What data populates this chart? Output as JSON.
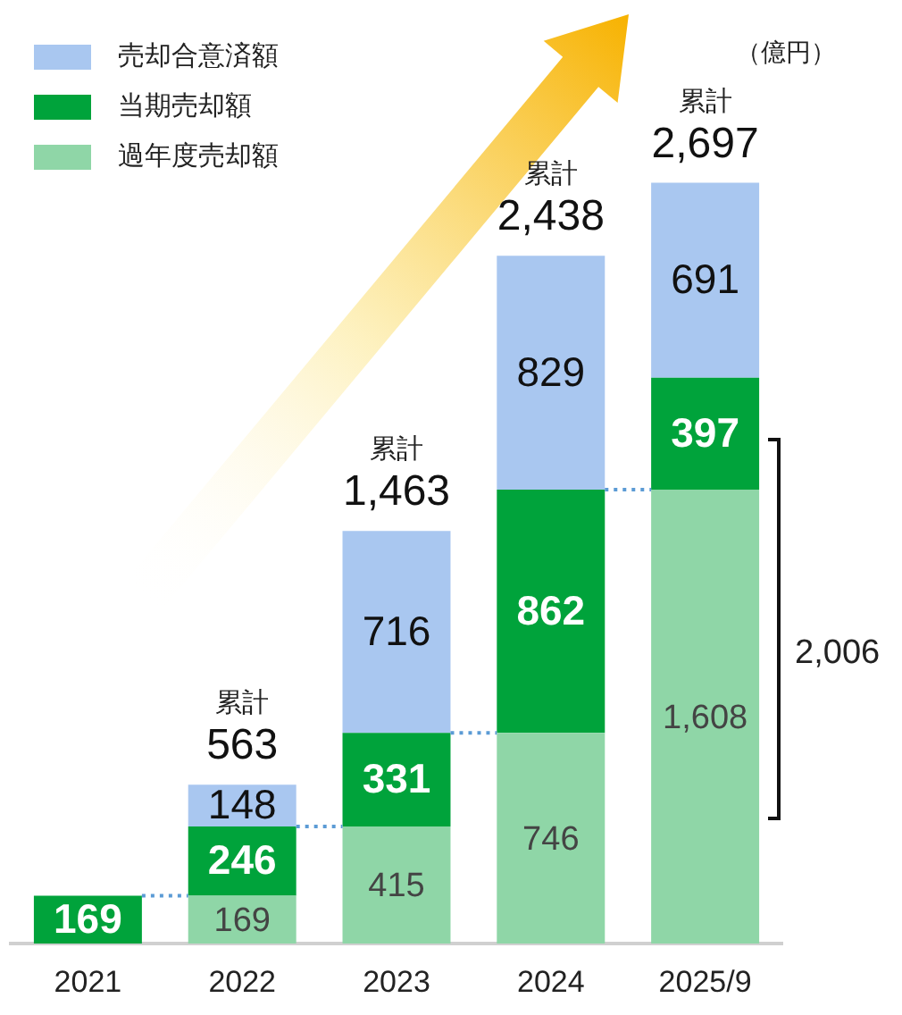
{
  "chart_data": {
    "type": "bar",
    "stacked": true,
    "categories": [
      "2021",
      "2022",
      "2023",
      "2024",
      "2025/9"
    ],
    "series": [
      {
        "name": "過年度売却額",
        "color": "#8fd6a7",
        "values": [
          null,
          169,
          415,
          746,
          1608
        ],
        "value_labels": [
          null,
          "169",
          "415",
          "746",
          "1,608"
        ]
      },
      {
        "name": "当期売却額",
        "color": "#00a33b",
        "values": [
          169,
          246,
          331,
          862,
          397
        ],
        "value_labels": [
          "169",
          "246",
          "331",
          "862",
          "397"
        ]
      },
      {
        "name": "売却合意済額",
        "color": "#a9c7f0",
        "values": [
          null,
          148,
          716,
          829,
          691
        ],
        "value_labels": [
          null,
          "148",
          "716",
          "829",
          "691"
        ]
      }
    ],
    "totals": [
      null,
      "累計\n563",
      "累計\n1,463",
      "累計\n2,438",
      "累計\n2,697"
    ],
    "annotations": [
      "（億円）",
      "2,006"
    ],
    "legend": "top left",
    "tick_labels": "x"
  }
}
